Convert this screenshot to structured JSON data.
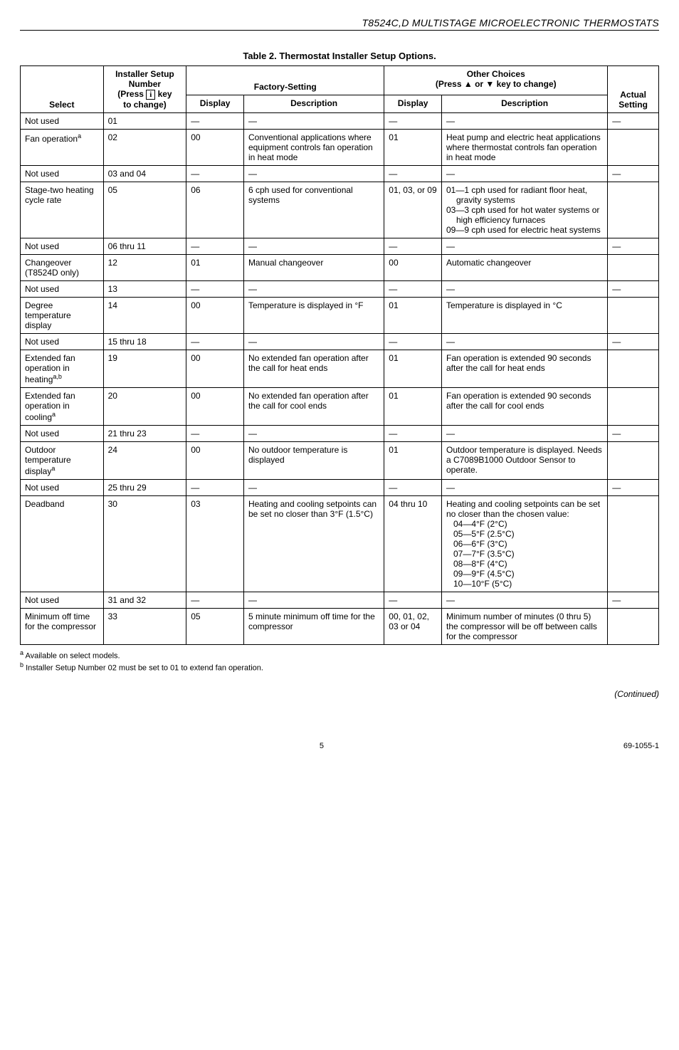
{
  "header": "T8524C,D MULTISTAGE MICROELECTRONIC THERMOSTATS",
  "tableTitle": "Table 2. Thermostat Installer Setup Options.",
  "columns": {
    "select": "Select",
    "number_l1": "Installer Setup",
    "number_l2": "Number",
    "number_l3_prefix": "(Press ",
    "number_l3_key": "i",
    "number_l3_suffix": " key",
    "number_l4": "to change)",
    "factory": "Factory-Setting",
    "factory_display": "Display",
    "factory_desc": "Description",
    "other_l1": "Other Choices",
    "other_l2": "(Press ▲ or ▼ key to change)",
    "other_display": "Display",
    "other_desc": "Description",
    "actual_l1": "Actual",
    "actual_l2": "Setting"
  },
  "rows": [
    {
      "select": "Not used",
      "num": "01",
      "fd": "—",
      "fdesc": "—",
      "od": "—",
      "odesc": "—",
      "act": "—"
    },
    {
      "select_html": "Fan operation<sup>a</sup>",
      "num": "02",
      "fd": "00",
      "fdesc": "Conventional applications where equipment controls fan operation in heat mode",
      "od": "01",
      "odesc": "Heat pump and electric heat applications where thermostat controls fan operation in heat mode",
      "act": ""
    },
    {
      "select": "Not used",
      "num": "03 and 04",
      "fd": "—",
      "fdesc": "—",
      "od": "—",
      "odesc": "—",
      "act": "—"
    },
    {
      "select": "Stage-two heating cycle rate",
      "num": "05",
      "fd": "06",
      "fdesc": "6 cph used for conventional systems",
      "od": "01, 03, or 09",
      "odesc_html": "<div class='hang'>01—1 cph used for radiant floor heat, gravity systems</div><div class='hang'>03—3 cph used for hot water systems or high efficiency furnaces</div><div class='hang'>09—9 cph used for electric heat systems</div>",
      "act": ""
    },
    {
      "select": "Not used",
      "num": "06 thru 11",
      "fd": "—",
      "fdesc": "—",
      "od": "—",
      "odesc": "—",
      "act": "—"
    },
    {
      "select": "Changeover (T8524D only)",
      "num": "12",
      "fd": "01",
      "fdesc": "Manual changeover",
      "od": "00",
      "odesc": "Automatic changeover",
      "act": ""
    },
    {
      "select": "Not used",
      "num": "13",
      "fd": "—",
      "fdesc": "—",
      "od": "—",
      "odesc": "—",
      "act": "—"
    },
    {
      "select": "Degree temperature display",
      "num": "14",
      "fd": "00",
      "fdesc": "Temperature is displayed in °F",
      "od": "01",
      "odesc": "Temperature is displayed in °C",
      "act": ""
    },
    {
      "select": "Not used",
      "num": "15 thru 18",
      "fd": "—",
      "fdesc": "—",
      "od": "—",
      "odesc": "—",
      "act": "—"
    },
    {
      "select_html": "Extended fan operation in heating<sup>a,b</sup>",
      "num": "19",
      "fd": "00",
      "fdesc": "No extended fan operation after the call for heat ends",
      "od": "01",
      "odesc": "Fan operation is extended 90 seconds after the call for heat ends",
      "act": ""
    },
    {
      "select_html": "Extended fan operation in cooling<sup>a</sup>",
      "num": "20",
      "fd": "00",
      "fdesc": "No extended fan operation after the call for cool ends",
      "od": "01",
      "odesc": "Fan operation is extended 90 seconds after the call for cool ends",
      "act": ""
    },
    {
      "select": "Not used",
      "num": "21 thru 23",
      "fd": "—",
      "fdesc": "—",
      "od": "—",
      "odesc": "—",
      "act": "—"
    },
    {
      "select_html": "Outdoor temperature display<sup>a</sup>",
      "num": "24",
      "fd": "00",
      "fdesc": "No outdoor temperature is displayed",
      "od": "01",
      "odesc": "Outdoor temperature is displayed. Needs a C7089B1000 Outdoor Sensor to operate.",
      "act": ""
    },
    {
      "select": "Not used",
      "num": "25 thru 29",
      "fd": "—",
      "fdesc": "—",
      "od": "—",
      "odesc": "—",
      "act": "—"
    },
    {
      "select": "Deadband",
      "num": "30",
      "fd": "03",
      "fdesc": "Heating and cooling setpoints can be set no closer than 3°F (1.5°C)",
      "od": "04 thru 10",
      "odesc_html": "Heating and cooling setpoints can be set no closer than the chosen value:<br>&nbsp;&nbsp;&nbsp;04—4°F (2°C)<br>&nbsp;&nbsp;&nbsp;05—5°F (2.5°C)<br>&nbsp;&nbsp;&nbsp;06—6°F (3°C)<br>&nbsp;&nbsp;&nbsp;07—7°F (3.5°C)<br>&nbsp;&nbsp;&nbsp;08—8°F (4°C)<br>&nbsp;&nbsp;&nbsp;09—9°F (4.5°C)<br>&nbsp;&nbsp;&nbsp;10—10°F (5°C)",
      "act": ""
    },
    {
      "select": "Not used",
      "num": "31 and 32",
      "fd": "—",
      "fdesc": "—",
      "od": "—",
      "odesc": "—",
      "act": "—"
    },
    {
      "select": "Minimum off time for the compressor",
      "num": "33",
      "fd": "05",
      "fdesc": "5 minute minimum off time for the compressor",
      "od": "00, 01, 02, 03 or 04",
      "odesc": "Minimum number of minutes (0 thru 5) the compressor will be off between calls for the compressor",
      "act": ""
    }
  ],
  "footnotes": {
    "a": "Available on select models.",
    "b": "Installer Setup Number 02 must be set to 01 to extend fan operation."
  },
  "continued": "(Continued)",
  "footer": {
    "page": "5",
    "doc": "69-1055-1"
  }
}
